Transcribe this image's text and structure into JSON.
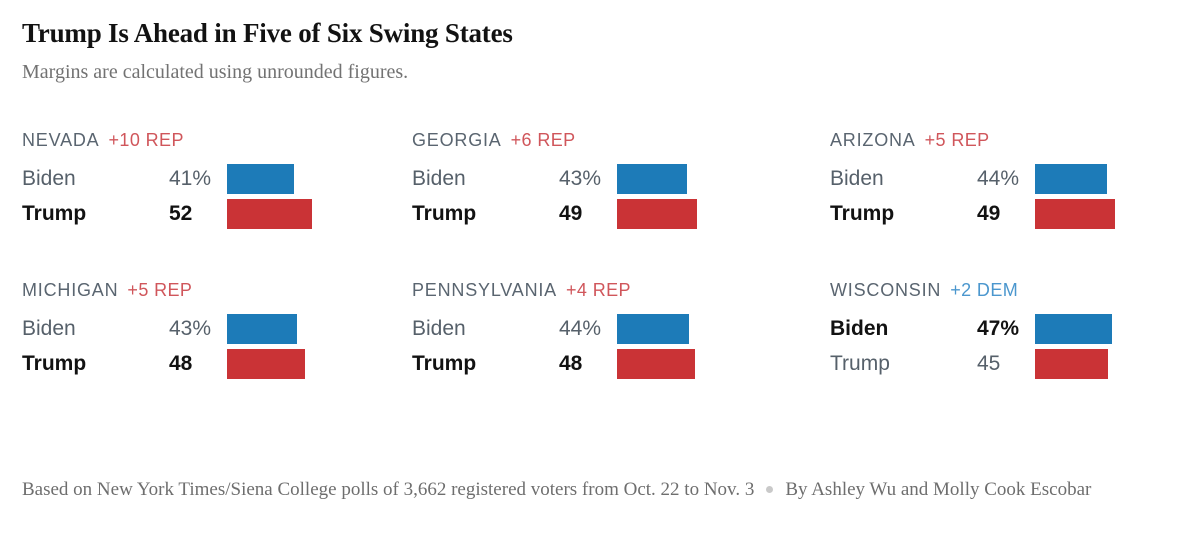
{
  "title": "Trump Is Ahead in Five of Six Swing States",
  "subtitle": "Margins are calculated using unrounded figures.",
  "footer": {
    "source": "Based on New York Times/Siena College polls of 3,662 registered voters from Oct. 22 to Nov. 3",
    "separator": "dot-icon",
    "byline": "By Ashley Wu and Molly Cook Escobar"
  },
  "colors": {
    "dem_bar": "#1d7bb8",
    "rep_bar": "#ca3336",
    "rep_margin_text": "#d0565b",
    "dem_margin_text": "#4b97ce",
    "state_label": "#5a6570",
    "muted_text": "#56606a",
    "leader_text": "#121212",
    "footer_text": "#6e6e6e"
  },
  "chart_data": {
    "type": "bar",
    "title": "Trump Is Ahead in Five of Six Swing States",
    "subtitle": "Margins are calculated using unrounded figures.",
    "unit": "percent of registered voters",
    "layout": "small multiples, 3 columns x 2 rows, horizontal bars, zero-based axis, no gridlines, values labeled left of bars",
    "xlim": [
      0,
      60
    ],
    "states": [
      {
        "state": "NEVADA",
        "margin_label": "+10 REP",
        "margin_party": "REP",
        "rows": [
          {
            "candidate": "Biden",
            "value": 41,
            "display": "41%",
            "party": "DEM"
          },
          {
            "candidate": "Trump",
            "value": 52,
            "display": "52",
            "party": "REP"
          }
        ]
      },
      {
        "state": "GEORGIA",
        "margin_label": "+6 REP",
        "margin_party": "REP",
        "rows": [
          {
            "candidate": "Biden",
            "value": 43,
            "display": "43%",
            "party": "DEM"
          },
          {
            "candidate": "Trump",
            "value": 49,
            "display": "49",
            "party": "REP"
          }
        ]
      },
      {
        "state": "ARIZONA",
        "margin_label": "+5 REP",
        "margin_party": "REP",
        "rows": [
          {
            "candidate": "Biden",
            "value": 44,
            "display": "44%",
            "party": "DEM"
          },
          {
            "candidate": "Trump",
            "value": 49,
            "display": "49",
            "party": "REP"
          }
        ]
      },
      {
        "state": "MICHIGAN",
        "margin_label": "+5 REP",
        "margin_party": "REP",
        "rows": [
          {
            "candidate": "Biden",
            "value": 43,
            "display": "43%",
            "party": "DEM"
          },
          {
            "candidate": "Trump",
            "value": 48,
            "display": "48",
            "party": "REP"
          }
        ]
      },
      {
        "state": "PENNSYLVANIA",
        "margin_label": "+4 REP",
        "margin_party": "REP",
        "rows": [
          {
            "candidate": "Biden",
            "value": 44,
            "display": "44%",
            "party": "DEM"
          },
          {
            "candidate": "Trump",
            "value": 48,
            "display": "48",
            "party": "REP"
          }
        ]
      },
      {
        "state": "WISCONSIN",
        "margin_label": "+2 DEM",
        "margin_party": "DEM",
        "rows": [
          {
            "candidate": "Biden",
            "value": 47,
            "display": "47%",
            "party": "DEM"
          },
          {
            "candidate": "Trump",
            "value": 45,
            "display": "45",
            "party": "REP"
          }
        ]
      }
    ]
  }
}
